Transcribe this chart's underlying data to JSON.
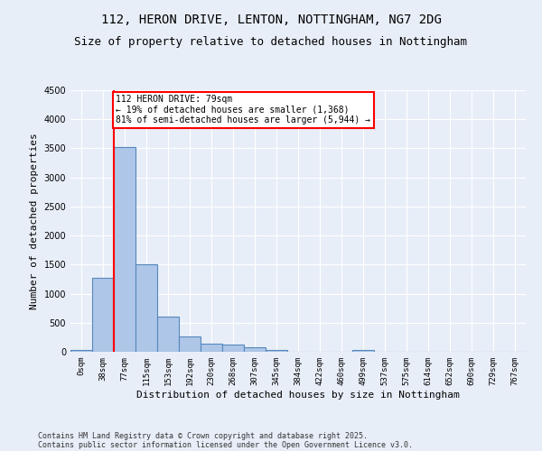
{
  "title1": "112, HERON DRIVE, LENTON, NOTTINGHAM, NG7 2DG",
  "title2": "Size of property relative to detached houses in Nottingham",
  "xlabel": "Distribution of detached houses by size in Nottingham",
  "ylabel": "Number of detached properties",
  "bin_labels": [
    "0sqm",
    "38sqm",
    "77sqm",
    "115sqm",
    "153sqm",
    "192sqm",
    "230sqm",
    "268sqm",
    "307sqm",
    "345sqm",
    "384sqm",
    "422sqm",
    "460sqm",
    "499sqm",
    "537sqm",
    "575sqm",
    "614sqm",
    "652sqm",
    "690sqm",
    "729sqm",
    "767sqm"
  ],
  "bar_heights": [
    30,
    1280,
    3530,
    1500,
    600,
    260,
    140,
    120,
    75,
    35,
    5,
    0,
    0,
    30,
    0,
    0,
    0,
    0,
    0,
    0,
    0
  ],
  "bar_color": "#aec6e8",
  "bar_edgecolor": "#5588bb",
  "property_line_x": 2,
  "annotation_text": "112 HERON DRIVE: 79sqm\n← 19% of detached houses are smaller (1,368)\n81% of semi-detached houses are larger (5,944) →",
  "annotation_box_color": "white",
  "annotation_box_edgecolor": "red",
  "vline_color": "red",
  "ylim": [
    0,
    4500
  ],
  "yticks": [
    0,
    500,
    1000,
    1500,
    2000,
    2500,
    3000,
    3500,
    4000,
    4500
  ],
  "background_color": "#e8eef8",
  "grid_color": "white",
  "footer1": "Contains HM Land Registry data © Crown copyright and database right 2025.",
  "footer2": "Contains public sector information licensed under the Open Government Licence v3.0.",
  "title1_fontsize": 10,
  "title2_fontsize": 9,
  "tick_fontsize": 6.5,
  "ylabel_fontsize": 8,
  "xlabel_fontsize": 8,
  "footer_fontsize": 6,
  "annot_fontsize": 7
}
